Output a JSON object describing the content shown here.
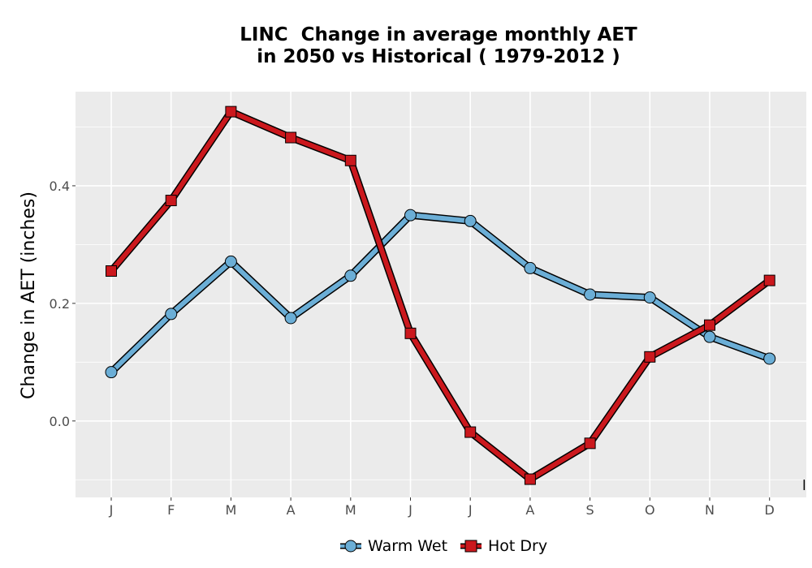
{
  "chart_data": {
    "type": "line",
    "title_lines": [
      "LINC  Change in average monthly AET",
      "in 2050 vs Historical ( 1979-2012 )"
    ],
    "xlabel": "",
    "ylabel": "Change in AET (inches)",
    "categories": [
      "J",
      "F",
      "M",
      "A",
      "M",
      "J",
      "J",
      "A",
      "S",
      "O",
      "N",
      "D"
    ],
    "ylim": [
      -0.13,
      0.56
    ],
    "yticks": [
      0.0,
      0.2,
      0.4
    ],
    "ytick_labels": [
      "0.0",
      "0.2",
      "0.4"
    ],
    "grid": true,
    "legend_position": "bottom",
    "stray_label": "l",
    "series": [
      {
        "name": "Warm Wet",
        "color": "#6baed6",
        "marker": "circle",
        "values": [
          0.083,
          0.182,
          0.271,
          0.175,
          0.247,
          0.35,
          0.34,
          0.26,
          0.215,
          0.21,
          0.143,
          0.106
        ]
      },
      {
        "name": "Hot Dry",
        "color": "#cb181d",
        "marker": "square",
        "values": [
          0.255,
          0.375,
          0.526,
          0.482,
          0.443,
          0.149,
          -0.019,
          -0.099,
          -0.038,
          0.109,
          0.163,
          0.239
        ]
      }
    ]
  }
}
